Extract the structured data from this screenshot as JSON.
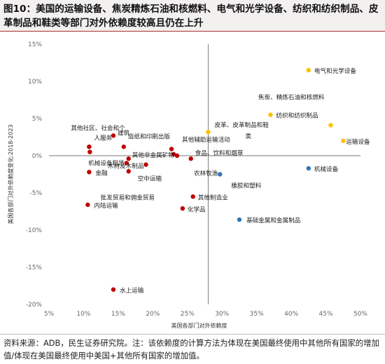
{
  "title": "图10：美国的运输设备、焦炭精炼石油和核燃料、电气和光学设备、纺织和纺织制品、皮革制品和鞋类等部门对外依赖度较高且仍在上升",
  "source": "资料来源：ADB，民生证券研究院。注：该依赖度的计算方法为体现在美国最终使用中其他所有国家的增加值/体现在美国最终使用中美国+其他所有国家的增加值。",
  "colors": {
    "red": "#c00000",
    "yellow": "#ffc000",
    "blue": "#2e75b6"
  },
  "chart_data": {
    "type": "scatter",
    "xlabel": "美国各部门对外依赖度",
    "ylabel": "美国各部门对外依赖度变化:2018-2023",
    "xlim": [
      0.05,
      0.5
    ],
    "ylim": [
      -0.2,
      0.15
    ],
    "x_ticks": [
      "5%",
      "10%",
      "15%",
      "20%",
      "25%",
      "30%",
      "35%",
      "40%",
      "45%",
      "50%"
    ],
    "y_ticks": [
      "15%",
      "10%",
      "5%",
      "0%",
      "-5%",
      "-10%",
      "-15%",
      "-20%"
    ],
    "divider_x": 0.28,
    "divider_y": 0.0,
    "grid": false,
    "points": [
      {
        "label": "电气和光学设备",
        "x": 0.425,
        "y": 0.115,
        "color": "yellow",
        "anchor": "start",
        "dx": 8,
        "dy": 4
      },
      {
        "label": "焦炭、精炼石油和核燃料",
        "x": 0.457,
        "y": 0.041,
        "color": "yellow",
        "anchor": "end",
        "dx": -9,
        "dy": -37
      },
      {
        "label": "纺织和纺织制品",
        "x": 0.37,
        "y": 0.055,
        "color": "yellow",
        "anchor": "start",
        "dx": 8,
        "dy": 4
      },
      {
        "label": "运输设备",
        "x": 0.475,
        "y": 0.02,
        "color": "yellow",
        "anchor": "start",
        "dx": 4,
        "dy": 4
      },
      {
        "label": "皮革、皮革制品和鞋",
        "x": 0.28,
        "y": 0.032,
        "color": "yellow",
        "anchor": "start",
        "dx": 9,
        "dy": -7
      },
      {
        "label": "类",
        "x": 0.28,
        "y": 0.032,
        "color": "",
        "anchor": "start",
        "dx": 53,
        "dy": 9
      },
      {
        "label": "机械设备",
        "x": 0.425,
        "y": -0.017,
        "color": "blue",
        "anchor": "start",
        "dx": 8,
        "dy": 4
      },
      {
        "label": "橡胶和塑料",
        "x": 0.297,
        "y": -0.025,
        "color": "blue",
        "anchor": "start",
        "dx": 16,
        "dy": 19
      },
      {
        "label": "基础金属和金属制品",
        "x": 0.325,
        "y": -0.086,
        "color": "blue",
        "anchor": "start",
        "dx": 10,
        "dy": 4
      },
      {
        "label": "其他社区、社会和个",
        "x": 0.108,
        "y": 0.012,
        "color": "red",
        "anchor": "start",
        "dx": -26,
        "dy": -24
      },
      {
        "label": "人服务",
        "x": 0.108,
        "y": 0.012,
        "color": "red",
        "anchor": "start",
        "dx": 7,
        "dy": -10
      },
      {
        "label": "建筑",
        "x": 0.143,
        "y": 0.027,
        "color": "red",
        "anchor": "start",
        "dx": 6,
        "dy": -1
      },
      {
        "label": "",
        "x": 0.109,
        "y": 0.005,
        "color": "red",
        "anchor": "start",
        "dx": 0,
        "dy": 0
      },
      {
        "label": "造纸和印刷出版",
        "x": 0.158,
        "y": 0.012,
        "color": "red",
        "anchor": "start",
        "dx": 6,
        "dy": -12
      },
      {
        "label": "其他非金属矿物",
        "x": 0.165,
        "y": -0.004,
        "color": "red",
        "anchor": "start",
        "dx": 5,
        "dy": -2
      },
      {
        "label": "机械设备租赁",
        "x": 0.162,
        "y": -0.01,
        "color": "red",
        "anchor": "end",
        "dx": -3,
        "dy": 3
      },
      {
        "label": "金融",
        "x": 0.108,
        "y": -0.022,
        "color": "red",
        "anchor": "start",
        "dx": 9,
        "dy": 4
      },
      {
        "label": "木材及木制品",
        "x": 0.19,
        "y": -0.012,
        "color": "red",
        "anchor": "end",
        "dx": -3,
        "dy": 5
      },
      {
        "label": "空中运输",
        "x": 0.165,
        "y": -0.021,
        "color": "red",
        "anchor": "start",
        "dx": 13,
        "dy": 13
      },
      {
        "label": "批发贸易和佣金贸易",
        "x": 0.227,
        "y": 0.009,
        "color": "red",
        "anchor": "end",
        "dx": -24,
        "dy": 72
      },
      {
        "label": "其他辅助运输活动",
        "x": 0.23,
        "y": 0.002,
        "color": "red",
        "anchor": "start",
        "dx": 12,
        "dy": -18
      },
      {
        "label": "食品、饮料和烟草",
        "x": 0.255,
        "y": -0.004,
        "color": "red",
        "anchor": "start",
        "dx": 6,
        "dy": -5
      },
      {
        "label": "农林牧渔",
        "x": 0.235,
        "y": 0.0,
        "color": "red",
        "anchor": "start",
        "dx": 24,
        "dy": 28
      },
      {
        "label": "其他制造业",
        "x": 0.258,
        "y": -0.055,
        "color": "red",
        "anchor": "start",
        "dx": 7,
        "dy": 4
      },
      {
        "label": "化学品",
        "x": 0.243,
        "y": -0.071,
        "color": "red",
        "anchor": "start",
        "dx": 7,
        "dy": 4
      },
      {
        "label": "内陆运输",
        "x": 0.106,
        "y": -0.066,
        "color": "red",
        "anchor": "start",
        "dx": 9,
        "dy": 4
      },
      {
        "label": "水上运输",
        "x": 0.143,
        "y": -0.18,
        "color": "red",
        "anchor": "start",
        "dx": 9,
        "dy": 4
      }
    ]
  }
}
